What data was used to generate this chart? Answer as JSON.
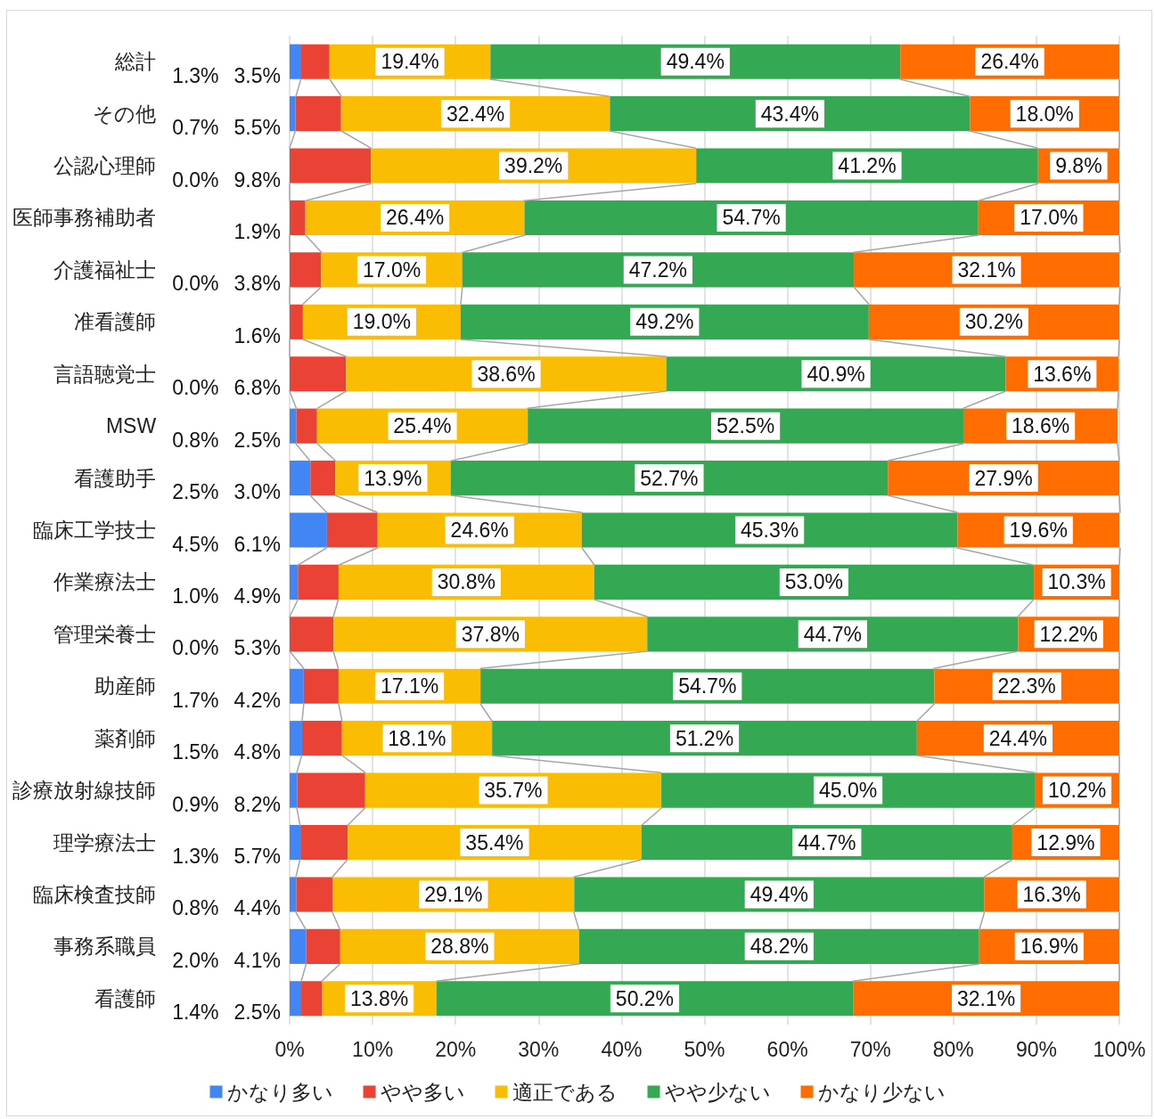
{
  "chart_data": {
    "type": "bar",
    "orientation": "horizontal",
    "stacked": true,
    "categories": [
      "総計",
      "その他",
      "公認心理師",
      "医師事務補助者",
      "介護福祉士",
      "准看護師",
      "言語聴覚士",
      "MSW",
      "看護助手",
      "臨床工学技士",
      "作業療法士",
      "管理栄養士",
      "助産師",
      "薬剤師",
      "診療放射線技師",
      "理学療法士",
      "臨床検査技師",
      "事務系職員",
      "看護師"
    ],
    "xlim": [
      0,
      100
    ],
    "xticks": [
      {
        "value": 0,
        "label": "0%"
      },
      {
        "value": 10,
        "label": "10%"
      },
      {
        "value": 20,
        "label": "20%"
      },
      {
        "value": 30,
        "label": "30%"
      },
      {
        "value": 40,
        "label": "40%"
      },
      {
        "value": 50,
        "label": "50%"
      },
      {
        "value": 60,
        "label": "60%"
      },
      {
        "value": 70,
        "label": "70%"
      },
      {
        "value": 80,
        "label": "80%"
      },
      {
        "value": 90,
        "label": "90%"
      },
      {
        "value": 100,
        "label": "100%"
      }
    ],
    "grid": "x",
    "legend": "bottom",
    "series": [
      {
        "name": "かなり多い",
        "color": "#4285f4",
        "values": [
          1.3,
          0.7,
          0.0,
          0.0,
          0.0,
          0.0,
          0.0,
          0.8,
          2.5,
          4.5,
          1.0,
          0.0,
          1.7,
          1.5,
          0.9,
          1.3,
          0.8,
          2.0,
          1.4
        ],
        "value_labels": [
          "1.3%",
          "0.7%",
          "0.0%",
          null,
          "0.0%",
          null,
          "0.0%",
          "0.8%",
          "2.5%",
          "4.5%",
          "1.0%",
          "0.0%",
          "1.7%",
          "1.5%",
          "0.9%",
          "1.3%",
          "0.8%",
          "2.0%",
          "1.4%"
        ]
      },
      {
        "name": "やや多い",
        "color": "#ea4335",
        "values": [
          3.5,
          5.5,
          9.8,
          1.9,
          3.8,
          1.6,
          6.8,
          2.5,
          3.0,
          6.1,
          4.9,
          5.3,
          4.2,
          4.8,
          8.2,
          5.7,
          4.4,
          4.1,
          2.5
        ],
        "value_labels": [
          "3.5%",
          "5.5%",
          "9.8%",
          "1.9%",
          "3.8%",
          "1.6%",
          "6.8%",
          "2.5%",
          "3.0%",
          "6.1%",
          "4.9%",
          "5.3%",
          "4.2%",
          "4.8%",
          "8.2%",
          "5.7%",
          "4.4%",
          "4.1%",
          "2.5%"
        ]
      },
      {
        "name": "適正である",
        "color": "#fbbc04",
        "values": [
          19.4,
          32.4,
          39.2,
          26.4,
          17.0,
          19.0,
          38.6,
          25.4,
          13.9,
          24.6,
          30.8,
          37.8,
          17.1,
          18.1,
          35.7,
          35.4,
          29.1,
          28.8,
          13.8
        ],
        "value_labels": [
          "19.4%",
          "32.4%",
          "39.2%",
          "26.4%",
          "17.0%",
          "19.0%",
          "38.6%",
          "25.4%",
          "13.9%",
          "24.6%",
          "30.8%",
          "37.8%",
          "17.1%",
          "18.1%",
          "35.7%",
          "35.4%",
          "29.1%",
          "28.8%",
          "13.8%"
        ]
      },
      {
        "name": "やや少ない",
        "color": "#34a853",
        "values": [
          49.4,
          43.4,
          41.2,
          54.7,
          47.2,
          49.2,
          40.9,
          52.5,
          52.7,
          45.3,
          53.0,
          44.7,
          54.7,
          51.2,
          45.0,
          44.7,
          49.4,
          48.2,
          50.2
        ],
        "value_labels": [
          "49.4%",
          "43.4%",
          "41.2%",
          "54.7%",
          "47.2%",
          "49.2%",
          "40.9%",
          "52.5%",
          "52.7%",
          "45.3%",
          "53.0%",
          "44.7%",
          "54.7%",
          "51.2%",
          "45.0%",
          "44.7%",
          "49.4%",
          "48.2%",
          "50.2%"
        ]
      },
      {
        "name": "かなり少ない",
        "color": "#ff6d01",
        "values": [
          26.4,
          18.0,
          9.8,
          17.0,
          32.1,
          30.2,
          13.6,
          18.6,
          27.9,
          19.6,
          10.3,
          12.2,
          22.3,
          24.4,
          10.2,
          12.9,
          16.3,
          16.9,
          32.1
        ],
        "value_labels": [
          "26.4%",
          "18.0%",
          "9.8%",
          "17.0%",
          "32.1%",
          "30.2%",
          "13.6%",
          "18.6%",
          "27.9%",
          "19.6%",
          "10.3%",
          "12.2%",
          "22.3%",
          "24.4%",
          "10.2%",
          "12.9%",
          "16.3%",
          "16.9%",
          "32.1%"
        ]
      }
    ]
  }
}
